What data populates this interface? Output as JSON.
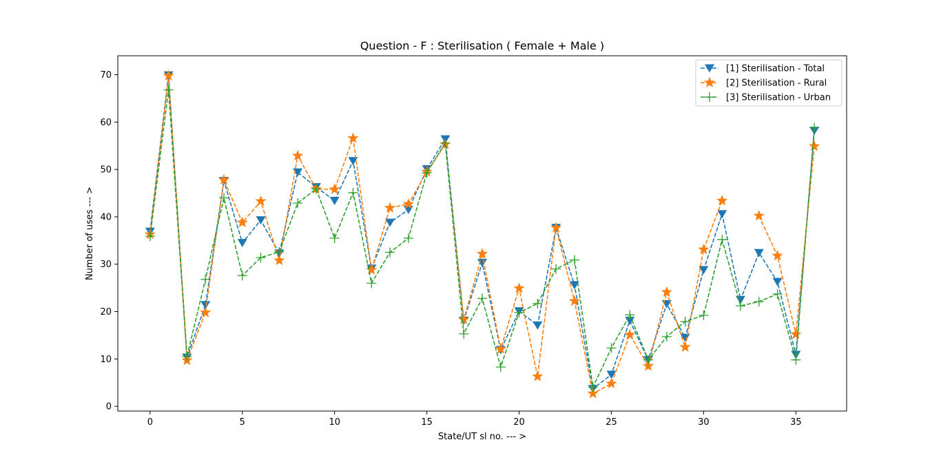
{
  "chart_data": {
    "type": "line",
    "title": "Question - F : Sterilisation ( Female + Male )",
    "xlabel": "State/UT sl no. --- >",
    "ylabel": "Number of uses --- >",
    "xlim": [
      -1.75,
      37.75
    ],
    "ylim": [
      -1,
      74
    ],
    "xticks": [
      0,
      5,
      10,
      15,
      20,
      25,
      30,
      35
    ],
    "yticks": [
      0,
      10,
      20,
      30,
      40,
      50,
      60,
      70
    ],
    "legend_position": "top-right",
    "grid": false,
    "x": [
      0,
      1,
      2,
      3,
      4,
      5,
      6,
      7,
      8,
      9,
      10,
      11,
      12,
      13,
      14,
      15,
      16,
      17,
      18,
      19,
      20,
      21,
      22,
      23,
      24,
      25,
      26,
      27,
      28,
      29,
      30,
      31,
      32,
      33,
      34,
      35,
      36
    ],
    "series": [
      {
        "name": "[1] Sterilisation - Total",
        "color": "#1f77b4",
        "marker": "triangle-down",
        "values": [
          36.9,
          69.9,
          10.3,
          21.4,
          47.6,
          34.5,
          39.3,
          32.3,
          49.4,
          46.3,
          43.4,
          51.8,
          29.1,
          38.8,
          41.5,
          50.1,
          56.4,
          18.1,
          30.3,
          11.9,
          20.1,
          17.1,
          37.7,
          25.6,
          3.7,
          6.7,
          18.1,
          9.8,
          21.6,
          14.5,
          28.8,
          40.6,
          22.5,
          32.4,
          26.3,
          10.9,
          58.2
        ]
      },
      {
        "name": "[2] Sterilisation - Rural",
        "color": "#ff7f0e",
        "marker": "star",
        "values": [
          36.3,
          69.8,
          9.7,
          19.8,
          47.8,
          38.8,
          43.3,
          30.8,
          52.9,
          45.9,
          45.8,
          56.6,
          28.8,
          41.9,
          42.7,
          49.5,
          55.3,
          18.3,
          32.2,
          12.1,
          24.9,
          6.3,
          37.7,
          22.2,
          2.7,
          4.8,
          15.1,
          8.5,
          24.1,
          12.5,
          33.1,
          43.4,
          null,
          40.2,
          31.8,
          15.2,
          54.9
        ]
      },
      {
        "name": "[3] Sterilisation - Urban",
        "color": "#2ca02c",
        "marker": "plus",
        "values": [
          35.9,
          66.8,
          10.5,
          26.8,
          44.0,
          27.6,
          31.4,
          32.6,
          42.9,
          45.9,
          35.5,
          45.1,
          26.0,
          32.5,
          35.5,
          49.3,
          55.6,
          15.3,
          22.8,
          8.3,
          19.8,
          21.7,
          29.0,
          30.9,
          4.0,
          12.3,
          19.3,
          9.8,
          14.7,
          17.9,
          19.2,
          35.2,
          21.2,
          22.1,
          23.7,
          9.8,
          58.8
        ]
      }
    ]
  }
}
